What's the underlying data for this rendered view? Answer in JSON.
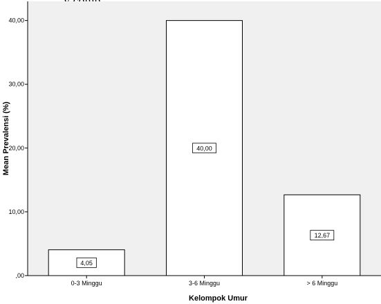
{
  "top_text": "y comp",
  "chart_data": {
    "type": "bar",
    "title": "",
    "xlabel": "Kelompok Umur",
    "ylabel": "Mean Prevalensi (%)",
    "categories": [
      "0-3 Minggu",
      "3-6 Minggu",
      "> 6 Minggu"
    ],
    "values": [
      4.05,
      40.0,
      12.67
    ],
    "data_labels": [
      "4,05",
      "40,00",
      "12,67"
    ],
    "ylim": [
      0,
      43
    ],
    "yticks": [
      0,
      10,
      20,
      30,
      40
    ],
    "ytick_labels": [
      ",00",
      "10,00",
      "20,00",
      "30,00",
      "40,00"
    ],
    "grid": false,
    "legend": "none",
    "colors": {
      "plot_background": "#f0f0f0",
      "bar_fill": "#ffffff",
      "bar_stroke": "#000000",
      "axis": "#000000"
    }
  }
}
